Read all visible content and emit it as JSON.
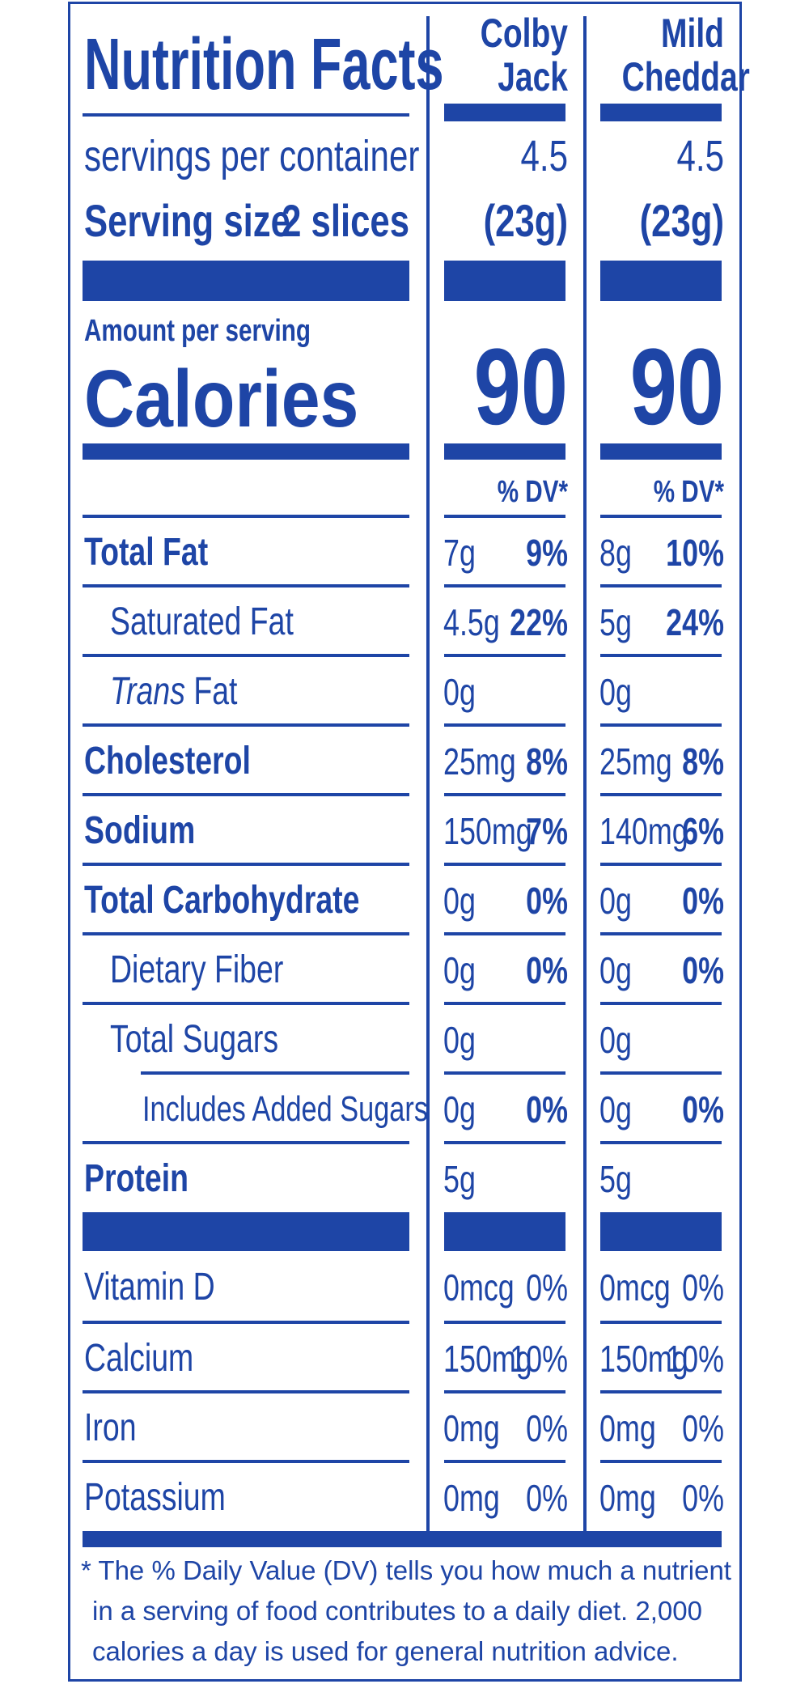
{
  "label": {
    "title": "Nutrition Facts",
    "servings_label": "servings per container",
    "serving_size_label": "Serving size",
    "serving_size_value": "2 slices",
    "amount_per_serving": "Amount per serving",
    "calories_label": "Calories",
    "dv_header": "% DV*",
    "brand_color": "#1e45a6"
  },
  "columns": [
    {
      "line1": "Colby",
      "line2": "Jack",
      "servings": "4.5",
      "serving_weight": "(23g)",
      "calories": "90"
    },
    {
      "line1": "Mild",
      "line2": "Cheddar",
      "servings": "4.5",
      "serving_weight": "(23g)",
      "calories": "90"
    }
  ],
  "nutrients": [
    {
      "name": "Total Fat",
      "amounts": [
        "7g",
        "8g"
      ],
      "dv": [
        "9%",
        "10%"
      ]
    },
    {
      "name": "Saturated Fat",
      "amounts": [
        "4.5g",
        "5g"
      ],
      "dv": [
        "22%",
        "24%"
      ]
    },
    {
      "name_italic": "Trans",
      "name_rest": " Fat",
      "amounts": [
        "0g",
        "0g"
      ]
    },
    {
      "name": "Cholesterol",
      "amounts": [
        "25mg",
        "25mg"
      ],
      "dv": [
        "8%",
        "8%"
      ]
    },
    {
      "name": "Sodium",
      "amounts": [
        "150mg",
        "140mg"
      ],
      "dv": [
        "7%",
        "6%"
      ]
    },
    {
      "name": "Total Carbohydrate",
      "amounts": [
        "0g",
        "0g"
      ],
      "dv": [
        "0%",
        "0%"
      ]
    },
    {
      "name": "Dietary Fiber",
      "amounts": [
        "0g",
        "0g"
      ],
      "dv": [
        "0%",
        "0%"
      ]
    },
    {
      "name": "Total Sugars",
      "amounts": [
        "0g",
        "0g"
      ]
    },
    {
      "name": "Includes Added Sugars",
      "amounts": [
        "0g",
        "0g"
      ],
      "dv": [
        "0%",
        "0%"
      ]
    },
    {
      "name": "Protein",
      "amounts": [
        "5g",
        "5g"
      ]
    }
  ],
  "vitamins": [
    {
      "name": "Vitamin D",
      "amounts": [
        "0mcg",
        "0mcg"
      ],
      "dv": [
        "0%",
        "0%"
      ]
    },
    {
      "name": "Calcium",
      "amounts": [
        "150mg",
        "150mg"
      ],
      "dv": [
        "10%",
        "10%"
      ]
    },
    {
      "name": "Iron",
      "amounts": [
        "0mg",
        "0mg"
      ],
      "dv": [
        "0%",
        "0%"
      ]
    },
    {
      "name": "Potassium",
      "amounts": [
        "0mg",
        "0mg"
      ],
      "dv": [
        "0%",
        "0%"
      ]
    }
  ],
  "footnote": {
    "line1": "* The % Daily Value (DV) tells you how much a nutrient",
    "line2": "in a serving of food contributes to a daily diet. 2,000",
    "line3": "calories a day is used for general nutrition advice."
  }
}
